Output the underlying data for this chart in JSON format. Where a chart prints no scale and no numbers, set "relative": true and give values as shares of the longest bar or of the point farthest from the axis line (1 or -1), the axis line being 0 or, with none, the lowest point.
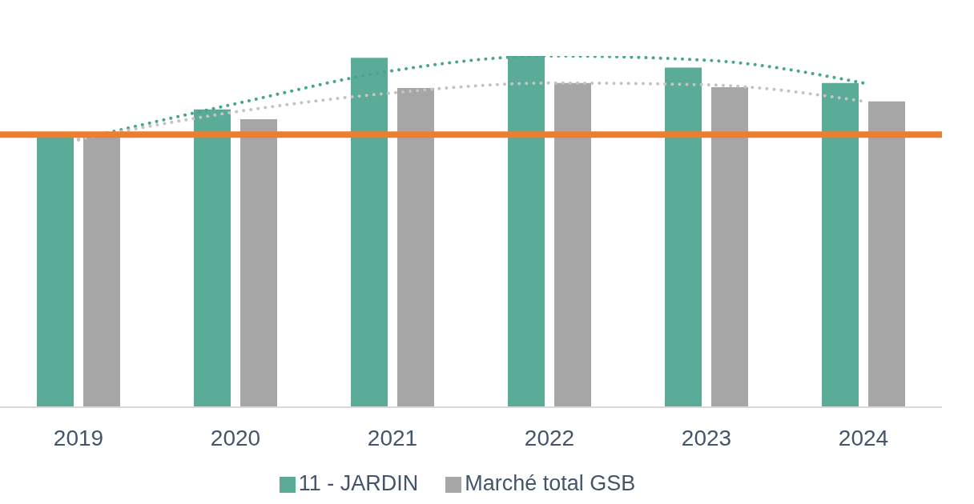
{
  "chart_data": {
    "type": "bar",
    "relative": true,
    "categories": [
      "2019",
      "2020",
      "2021",
      "2022",
      "2023",
      "2024"
    ],
    "series": [
      {
        "name": "11 - JARDIN",
        "color": "#5aab98",
        "values": [
          0.771,
          0.848,
          0.995,
          1,
          0.967,
          0.923
        ]
      },
      {
        "name": "Marché total GSB",
        "color": "#a6a6a6",
        "values": [
          0.771,
          0.82,
          0.909,
          0.923,
          0.911,
          0.871
        ]
      },
      {
        "type": "line",
        "color": "#4aa58a",
        "line_style": "dotted",
        "marker": "none",
        "values": [
          0.762,
          0.864,
          0.958,
          1,
          0.988,
          0.923
        ]
      },
      {
        "type": "line",
        "color": "#c4c4c4",
        "line_style": "dotted",
        "marker": "none",
        "values": [
          0.762,
          0.841,
          0.895,
          0.923,
          0.918,
          0.871
        ]
      }
    ],
    "ref_lines": [
      {
        "axis": "y",
        "value": 0.776,
        "color": "#ed7d31"
      }
    ],
    "legend": "bottom"
  }
}
